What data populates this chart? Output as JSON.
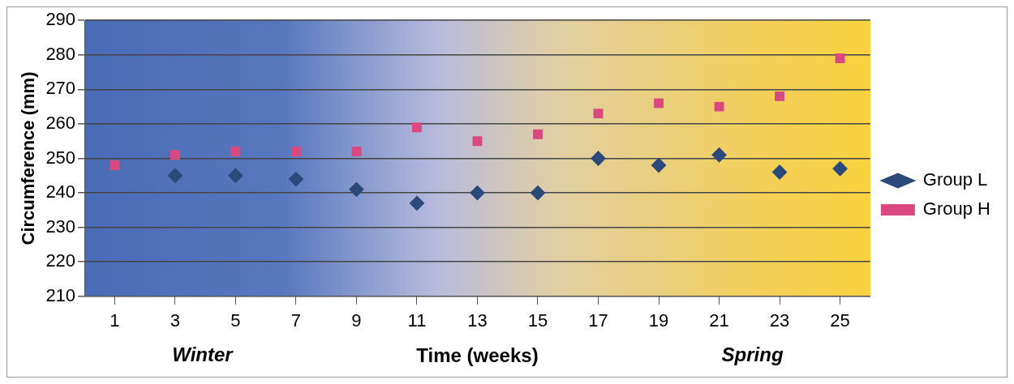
{
  "chart_data": {
    "type": "scatter",
    "xlabel": "Time (weeks)",
    "ylabel": "Circumference (mm)",
    "x": [
      1,
      3,
      5,
      7,
      9,
      11,
      13,
      15,
      17,
      19,
      21,
      23,
      25
    ],
    "series": [
      {
        "name": "Group L",
        "color": "#2b4a7a",
        "marker": "diamond",
        "values": [
          null,
          245,
          245,
          244,
          241,
          237,
          240,
          240,
          250,
          248,
          251,
          246,
          247
        ]
      },
      {
        "name": "Group H",
        "color": "#d9497f",
        "marker": "square",
        "values": [
          248,
          251,
          252,
          252,
          252,
          259,
          255,
          257,
          263,
          266,
          265,
          268,
          279
        ]
      }
    ],
    "xlim": [
      0,
      26
    ],
    "xticks": [
      1,
      3,
      5,
      7,
      9,
      11,
      13,
      15,
      17,
      19,
      21,
      23,
      25
    ],
    "ylim": [
      210,
      290
    ],
    "yticks": [
      210,
      220,
      230,
      240,
      250,
      260,
      270,
      280,
      290
    ],
    "grid": "y",
    "legend": "right",
    "annotations": [
      "Winter",
      "Spring"
    ]
  }
}
